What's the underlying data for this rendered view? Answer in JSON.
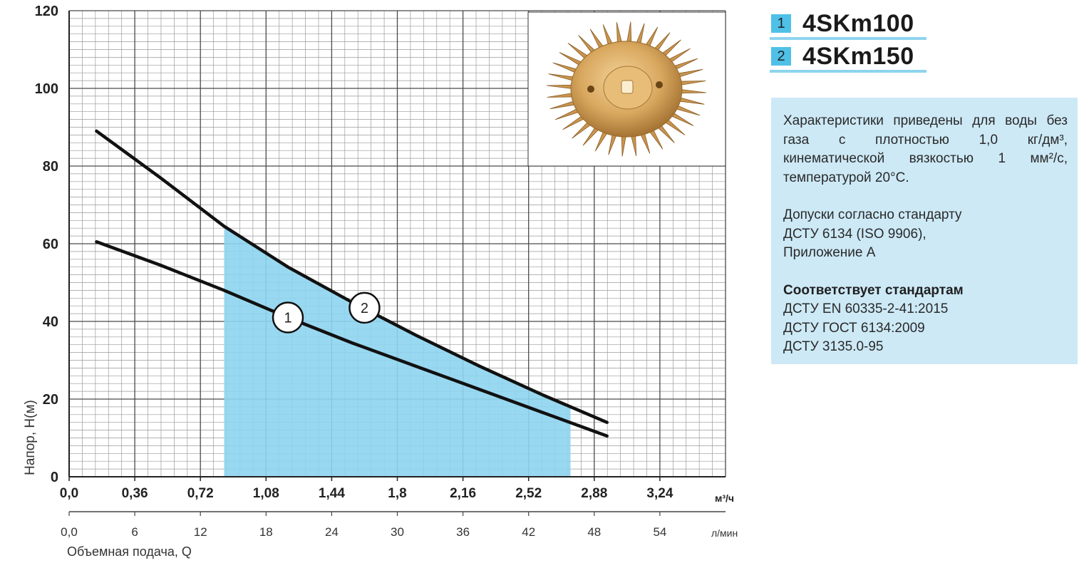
{
  "colors": {
    "operating_range": "#8ed4ef",
    "curve": "#111111",
    "grid_major": "#4a4a4a",
    "grid_minor": "#9a9a9a",
    "legend_box": "#4fc0e8",
    "legend_line": "#8ed4ef",
    "info_bg": "#cde9f6"
  },
  "legend": [
    {
      "number": "1",
      "name": "4SKm100"
    },
    {
      "number": "2",
      "name": "4SKm150"
    }
  ],
  "info": {
    "paragraph1": "Характеристики приведены для воды без газа с плотностью 1,0 кг/дм³, кинематической вязкостью 1 мм²/с, температурой 20°C.",
    "paragraph2_line1": "Допуски согласно стандарту",
    "paragraph2_line2": "ДСТУ 6134 (ISO 9906),",
    "paragraph2_line3": "Приложение А",
    "standards_title": "Соответствует стандартам",
    "standards": [
      "ДСТУ EN 60335-2-41:2015",
      "ДСТУ ГОСТ 6134:2009",
      "ДСТУ 3135.0-95"
    ]
  },
  "chart_data": {
    "type": "line",
    "ylabel": "Напор, H(м)",
    "xlabel": "Объемная подача, Q",
    "x_unit": "м³/ч",
    "x2_unit": "л/мин",
    "xlim": [
      0,
      3.6
    ],
    "ylim": [
      0,
      120
    ],
    "y_ticks": [
      "0",
      "20",
      "40",
      "60",
      "80",
      "100",
      "120"
    ],
    "x_ticks": [
      "0,0",
      "0,36",
      "0,72",
      "1,08",
      "1,44",
      "1,8",
      "2,16",
      "2,52",
      "2,88",
      "3,24"
    ],
    "x2_ticks": [
      "0,0",
      "6",
      "12",
      "18",
      "24",
      "30",
      "36",
      "42",
      "48",
      "54"
    ],
    "operating_range": {
      "x": [
        0.85,
        2.75
      ]
    },
    "series": [
      {
        "label": "1",
        "x": [
          0.15,
          0.5,
          0.85,
          1.2,
          1.55,
          1.9,
          2.25,
          2.6,
          2.95
        ],
        "y": [
          60.5,
          54.5,
          48,
          41,
          34.5,
          28.5,
          22.5,
          16.5,
          10.5
        ]
      },
      {
        "label": "2",
        "x": [
          0.15,
          0.5,
          0.85,
          1.2,
          1.55,
          1.9,
          2.25,
          2.6,
          2.95
        ],
        "y": [
          89,
          77,
          64.5,
          54,
          45,
          36.5,
          28.5,
          21,
          14
        ]
      }
    ],
    "series_markers": [
      {
        "label": "1",
        "x": 1.2,
        "y": 41
      },
      {
        "label": "2",
        "x": 1.62,
        "y": 43.5
      }
    ],
    "grid": true
  }
}
